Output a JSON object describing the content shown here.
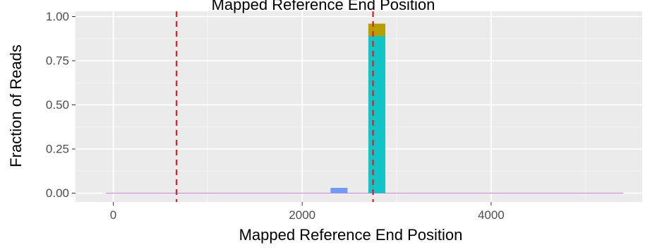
{
  "chart_data": {
    "type": "bar",
    "title": "Mapped Reference End Position",
    "xlabel": "Mapped Reference End Position",
    "ylabel": "Fraction of Reads",
    "xlim": [
      -400,
      5600
    ],
    "ylim": [
      -0.05,
      1.03
    ],
    "x_ticks": [
      0,
      2000,
      4000
    ],
    "x_tick_labels": [
      "0",
      "2000",
      "4000"
    ],
    "y_ticks": [
      0,
      0.25,
      0.5,
      0.75,
      1
    ],
    "y_tick_labels": [
      "0.00",
      "0.25",
      "0.50",
      "0.75",
      "1.00"
    ],
    "grid": true,
    "legend": "none",
    "bin_width": 180,
    "bars": [
      {
        "x_start": 2300,
        "x_end": 2480,
        "segments": [
          {
            "y0": 0,
            "y1": 0.03,
            "color": "#6f9bf8"
          }
        ]
      },
      {
        "x_start": 2700,
        "x_end": 2880,
        "segments": [
          {
            "y0": 0,
            "y1": 0.89,
            "color": "#13c4c6"
          },
          {
            "y0": 0.89,
            "y1": 0.96,
            "color": "#b79f00"
          }
        ]
      }
    ],
    "baseline": {
      "x_start": -80,
      "x_end": 5400,
      "y": 0,
      "color": "#c77cff"
    },
    "vlines": [
      {
        "x": 670,
        "color": "#e41a1c",
        "style": "dashed"
      },
      {
        "x": 2750,
        "color": "#e41a1c",
        "style": "dashed"
      }
    ]
  },
  "colors": {
    "panel_background": "#ebebeb",
    "grid_major": "#ffffff",
    "grid_minor": "#f5f5f5"
  }
}
